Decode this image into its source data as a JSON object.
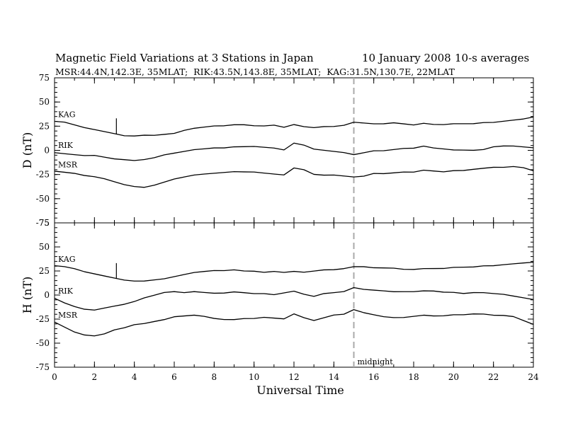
{
  "title": "Magnetic Field Variations at 3 Stations in Japan",
  "date": "10 January 2008",
  "averaging": "10-s averages",
  "stations_line": "MSR:44.4N,142.3E, 35MLAT;  RIK:43.5N,143.8E, 35MLAT;  KAG:31.5N,130.7E, 22MLAT",
  "colors": {
    "axes": "#000000",
    "traces": "#000000",
    "midnight_line": "#aaaaaa"
  },
  "chart_data": [
    {
      "type": "line",
      "panel": "top",
      "ylabel": "D (nT)",
      "xlabel": "",
      "xlim": [
        0,
        24
      ],
      "ylim": [
        -75,
        75
      ],
      "xticks": [
        0,
        2,
        4,
        6,
        8,
        10,
        12,
        14,
        16,
        18,
        20,
        22,
        24
      ],
      "yticks": [
        -75,
        -50,
        -25,
        0,
        25,
        50,
        75
      ],
      "annotation": {
        "text": "",
        "x": 15
      },
      "series": [
        {
          "name": "KAG",
          "x": [
            0,
            0.5,
            1,
            1.5,
            2,
            2.5,
            3,
            3.5,
            4,
            4.5,
            5,
            5.5,
            6,
            6.5,
            7,
            7.5,
            8,
            8.5,
            9,
            9.5,
            10,
            10.5,
            11,
            11.5,
            12,
            12.5,
            13,
            13.5,
            14,
            14.5,
            15,
            15.5,
            16,
            16.5,
            17,
            17.5,
            18,
            18.5,
            19,
            19.5,
            20,
            20.5,
            21,
            21.5,
            22,
            22.5,
            23,
            23.5,
            24
          ],
          "values": [
            30,
            29,
            26,
            23,
            21,
            19,
            17,
            15,
            15,
            16,
            16,
            17,
            18,
            21,
            23,
            24,
            25,
            25,
            26,
            26,
            25,
            25,
            26,
            24,
            27,
            25,
            24,
            25,
            25,
            26,
            29,
            28,
            27,
            27,
            28,
            27,
            26,
            28,
            27,
            27,
            28,
            28,
            28,
            29,
            29,
            30,
            31,
            32,
            34
          ]
        },
        {
          "name": "RIK",
          "x": [
            0,
            0.5,
            1,
            1.5,
            2,
            2.5,
            3,
            3.5,
            4,
            4.5,
            5,
            5.5,
            6,
            6.5,
            7,
            7.5,
            8,
            8.5,
            9,
            9.5,
            10,
            10.5,
            11,
            11.5,
            12,
            12.5,
            13,
            13.5,
            14,
            14.5,
            15,
            15.5,
            16,
            16.5,
            17,
            17.5,
            18,
            18.5,
            19,
            19.5,
            20,
            20.5,
            21,
            21.5,
            22,
            22.5,
            23,
            23.5,
            24
          ],
          "values": [
            -2,
            -3,
            -4,
            -5,
            -5,
            -7,
            -9,
            -10,
            -11,
            -10,
            -8,
            -5,
            -3,
            -1,
            1,
            2,
            3,
            3,
            4,
            4,
            4,
            3,
            2,
            0,
            7,
            5,
            1,
            0,
            -1,
            -2,
            -4,
            -2,
            0,
            0,
            1,
            2,
            2,
            4,
            2,
            1,
            0,
            0,
            0,
            1,
            4,
            5,
            5,
            4,
            3
          ]
        },
        {
          "name": "MSR",
          "x": [
            0,
            0.5,
            1,
            1.5,
            2,
            2.5,
            3,
            3.5,
            4,
            4.5,
            5,
            5.5,
            6,
            6.5,
            7,
            7.5,
            8,
            8.5,
            9,
            9.5,
            10,
            10.5,
            11,
            11.5,
            12,
            12.5,
            13,
            13.5,
            14,
            14.5,
            15,
            15.5,
            16,
            16.5,
            17,
            17.5,
            18,
            18.5,
            19,
            19.5,
            20,
            20.5,
            21,
            21.5,
            22,
            22.5,
            23,
            23.5,
            24
          ],
          "values": [
            -22,
            -23,
            -24,
            -26,
            -27,
            -29,
            -32,
            -35,
            -37,
            -38,
            -36,
            -33,
            -30,
            -28,
            -26,
            -25,
            -24,
            -23,
            -22,
            -22,
            -22,
            -23,
            -24,
            -25,
            -18,
            -20,
            -25,
            -26,
            -26,
            -27,
            -28,
            -27,
            -24,
            -24,
            -23,
            -22,
            -22,
            -20,
            -21,
            -22,
            -21,
            -21,
            -20,
            -19,
            -18,
            -18,
            -17,
            -18,
            -21
          ]
        }
      ]
    },
    {
      "type": "line",
      "panel": "bottom",
      "ylabel": "H (nT)",
      "xlabel": "Universal Time",
      "xlim": [
        0,
        24
      ],
      "ylim": [
        -75,
        75
      ],
      "xticks": [
        0,
        2,
        4,
        6,
        8,
        10,
        12,
        14,
        16,
        18,
        20,
        22,
        24
      ],
      "yticks": [
        -75,
        -50,
        -25,
        0,
        25,
        50,
        75
      ],
      "annotation": {
        "text": "midnight",
        "x": 15
      },
      "series": [
        {
          "name": "KAG",
          "x": [
            0,
            0.5,
            1,
            1.5,
            2,
            2.5,
            3,
            3.5,
            4,
            4.5,
            5,
            5.5,
            6,
            6.5,
            7,
            7.5,
            8,
            8.5,
            9,
            9.5,
            10,
            10.5,
            11,
            11.5,
            12,
            12.5,
            13,
            13.5,
            14,
            14.5,
            15,
            15.5,
            16,
            16.5,
            17,
            17.5,
            18,
            18.5,
            19,
            19.5,
            20,
            20.5,
            21,
            21.5,
            22,
            22.5,
            23,
            23.5,
            24
          ],
          "values": [
            30,
            29,
            27,
            24,
            22,
            20,
            18,
            16,
            15,
            15,
            16,
            17,
            19,
            21,
            23,
            24,
            25,
            25,
            26,
            25,
            25,
            24,
            25,
            24,
            25,
            24,
            25,
            26,
            26,
            27,
            29,
            29,
            28,
            28,
            28,
            27,
            27,
            28,
            28,
            28,
            29,
            29,
            29,
            30,
            30,
            31,
            32,
            33,
            34
          ]
        },
        {
          "name": "RIK",
          "x": [
            0,
            0.5,
            1,
            1.5,
            2,
            2.5,
            3,
            3.5,
            4,
            4.5,
            5,
            5.5,
            6,
            6.5,
            7,
            7.5,
            8,
            8.5,
            9,
            9.5,
            10,
            10.5,
            11,
            11.5,
            12,
            12.5,
            13,
            13.5,
            14,
            14.5,
            15,
            15.5,
            16,
            16.5,
            17,
            17.5,
            18,
            18.5,
            19,
            19.5,
            20,
            20.5,
            21,
            21.5,
            22,
            22.5,
            23,
            23.5,
            24
          ],
          "values": [
            -3,
            -8,
            -12,
            -15,
            -16,
            -14,
            -12,
            -10,
            -7,
            -3,
            0,
            3,
            4,
            3,
            4,
            3,
            2,
            2,
            3,
            2,
            1,
            1,
            0,
            2,
            4,
            1,
            -1,
            2,
            3,
            4,
            8,
            6,
            5,
            4,
            3,
            3,
            3,
            4,
            4,
            3,
            3,
            2,
            3,
            3,
            2,
            1,
            -1,
            -3,
            -5
          ]
        },
        {
          "name": "MSR",
          "x": [
            0,
            0.5,
            1,
            1.5,
            2,
            2.5,
            3,
            3.5,
            4,
            4.5,
            5,
            5.5,
            6,
            6.5,
            7,
            7.5,
            8,
            8.5,
            9,
            9.5,
            10,
            10.5,
            11,
            11.5,
            12,
            12.5,
            13,
            13.5,
            14,
            14.5,
            15,
            15.5,
            16,
            16.5,
            17,
            17.5,
            18,
            18.5,
            19,
            19.5,
            20,
            20.5,
            21,
            21.5,
            22,
            22.5,
            23,
            23.5,
            24
          ],
          "values": [
            -28,
            -33,
            -38,
            -41,
            -42,
            -40,
            -36,
            -34,
            -31,
            -30,
            -28,
            -26,
            -23,
            -22,
            -21,
            -22,
            -24,
            -25,
            -25,
            -24,
            -24,
            -23,
            -24,
            -25,
            -20,
            -24,
            -27,
            -24,
            -21,
            -20,
            -15,
            -18,
            -20,
            -22,
            -23,
            -23,
            -22,
            -21,
            -22,
            -22,
            -21,
            -21,
            -20,
            -20,
            -21,
            -21,
            -22,
            -26,
            -30
          ]
        }
      ]
    }
  ]
}
